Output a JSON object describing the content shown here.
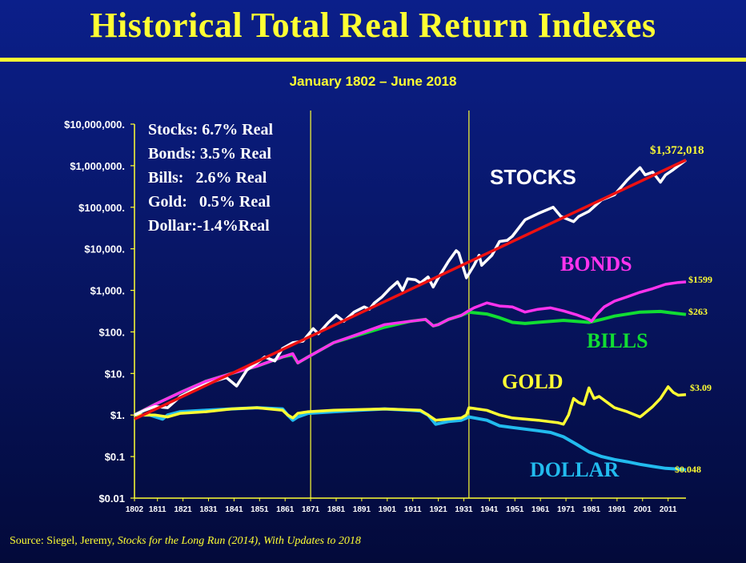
{
  "header": {
    "title": "Historical Total Real Return Indexes",
    "subtitle": "January 1802 – June 2018"
  },
  "source": {
    "prefix": "Source: Siegel, Jeremy, ",
    "italic": "Stocks for the Long Run (2014), With Updates to 2018"
  },
  "colors": {
    "stocks": "#ffffff",
    "trend": "#ee1111",
    "bonds": "#ff33ee",
    "bills": "#11dd33",
    "gold": "#ffff33",
    "dollar": "#22bbee",
    "axis": "#ffff33",
    "text": "#ffffff"
  },
  "chart_data": {
    "type": "line",
    "y_scale": "log",
    "ylim": [
      0.01,
      10000000
    ],
    "xlim": [
      1802,
      2018
    ],
    "y_ticks": [
      {
        "value": 10000000,
        "label": "$10,000,000."
      },
      {
        "value": 1000000,
        "label": "$1,000,000."
      },
      {
        "value": 100000,
        "label": "$100,000."
      },
      {
        "value": 10000,
        "label": "$10,000."
      },
      {
        "value": 1000,
        "label": "$1,000."
      },
      {
        "value": 100,
        "label": "$100."
      },
      {
        "value": 10,
        "label": "$10."
      },
      {
        "value": 1,
        "label": "$1."
      },
      {
        "value": 0.1,
        "label": "$0.1"
      },
      {
        "value": 0.01,
        "label": "$0.01"
      }
    ],
    "x_ticks": [
      1802,
      1811,
      1821,
      1831,
      1841,
      1851,
      1861,
      1871,
      1881,
      1891,
      1901,
      1911,
      1921,
      1931,
      1941,
      1951,
      1961,
      1971,
      1981,
      1991,
      2001,
      2011
    ],
    "vertical_markers": [
      1871,
      1933
    ],
    "legend": [
      "Stocks: 6.7% Real",
      "Bonds: 3.5% Real",
      "Bills:   2.6% Real",
      "Gold:   0.5% Real",
      "Dollar:-1.4%Real"
    ],
    "trend_line": {
      "x": [
        1802,
        2018
      ],
      "y": [
        0.8,
        1372018
      ]
    },
    "series": [
      {
        "key": "stocks",
        "name": "STOCKS",
        "end_label": "$1,372,018",
        "x": [
          1802,
          1806,
          1810,
          1815,
          1820,
          1825,
          1830,
          1835,
          1838,
          1842,
          1846,
          1850,
          1853,
          1857,
          1860,
          1864,
          1868,
          1872,
          1874,
          1878,
          1881,
          1884,
          1888,
          1892,
          1894,
          1896,
          1899,
          1902,
          1905,
          1907,
          1909,
          1912,
          1914,
          1917,
          1919,
          1921,
          1925,
          1928,
          1929,
          1932,
          1935,
          1937,
          1938,
          1942,
          1945,
          1948,
          1950,
          1955,
          1960,
          1966,
          1969,
          1974,
          1976,
          1980,
          1985,
          1990,
          1995,
          2000,
          2002,
          2005,
          2008,
          2010,
          2013,
          2018
        ],
        "y": [
          1,
          1.3,
          1.6,
          1.5,
          2.8,
          4,
          5.5,
          7,
          8,
          5,
          12,
          18,
          25,
          20,
          40,
          55,
          60,
          120,
          90,
          170,
          250,
          180,
          300,
          400,
          350,
          500,
          700,
          1100,
          1600,
          1000,
          1900,
          1800,
          1500,
          2100,
          1200,
          2000,
          5000,
          9000,
          8000,
          2000,
          4000,
          7000,
          4000,
          7000,
          15000,
          16000,
          20000,
          50000,
          70000,
          100000,
          60000,
          45000,
          60000,
          80000,
          150000,
          200000,
          450000,
          900000,
          600000,
          700000,
          400000,
          600000,
          800000,
          1372018
        ]
      },
      {
        "key": "bonds",
        "name": "BONDS",
        "end_label": "$1599",
        "x": [
          1802,
          1810,
          1820,
          1830,
          1840,
          1850,
          1860,
          1864,
          1866,
          1870,
          1880,
          1890,
          1900,
          1910,
          1916,
          1919,
          1921,
          1925,
          1930,
          1932,
          1935,
          1940,
          1945,
          1950,
          1955,
          1960,
          1965,
          1970,
          1975,
          1980,
          1981,
          1983,
          1986,
          1990,
          1995,
          2000,
          2005,
          2010,
          2015,
          2018
        ],
        "y": [
          1,
          1.8,
          3.5,
          6.5,
          10,
          15,
          25,
          30,
          18,
          25,
          55,
          90,
          150,
          180,
          200,
          140,
          150,
          200,
          250,
          300,
          380,
          500,
          420,
          400,
          300,
          350,
          380,
          320,
          260,
          200,
          180,
          260,
          400,
          550,
          700,
          900,
          1100,
          1400,
          1550,
          1599
        ]
      },
      {
        "key": "bills",
        "name": "BILLS",
        "end_label": "$263",
        "x": [
          1802,
          1810,
          1820,
          1830,
          1840,
          1850,
          1860,
          1864,
          1866,
          1870,
          1880,
          1890,
          1900,
          1910,
          1916,
          1919,
          1921,
          1925,
          1930,
          1933,
          1940,
          1945,
          1950,
          1955,
          1960,
          1970,
          1975,
          1980,
          1985,
          1990,
          2000,
          2008,
          2012,
          2018
        ],
        "y": [
          1,
          1.8,
          3.5,
          6.5,
          10,
          15,
          25,
          28,
          18,
          25,
          55,
          85,
          130,
          180,
          200,
          140,
          150,
          200,
          250,
          300,
          270,
          220,
          170,
          160,
          170,
          190,
          180,
          170,
          200,
          240,
          300,
          310,
          290,
          263
        ]
      },
      {
        "key": "gold",
        "name": "GOLD",
        "end_label": "$3.09",
        "x": [
          1802,
          1810,
          1815,
          1820,
          1830,
          1840,
          1850,
          1860,
          1862,
          1864,
          1866,
          1870,
          1880,
          1900,
          1914,
          1917,
          1920,
          1925,
          1930,
          1932,
          1933,
          1940,
          1945,
          1950,
          1960,
          1968,
          1970,
          1972,
          1974,
          1976,
          1978,
          1980,
          1982,
          1984,
          1990,
          1995,
          2000,
          2001,
          2005,
          2008,
          2011,
          2013,
          2015,
          2018
        ],
        "y": [
          1,
          1,
          0.9,
          1.1,
          1.2,
          1.4,
          1.5,
          1.3,
          1.0,
          0.85,
          1.1,
          1.2,
          1.3,
          1.4,
          1.3,
          1.0,
          0.75,
          0.8,
          0.85,
          1.0,
          1.5,
          1.3,
          1.0,
          0.85,
          0.75,
          0.65,
          0.6,
          1.0,
          2.5,
          2.0,
          1.8,
          4.5,
          2.5,
          2.8,
          1.5,
          1.2,
          0.9,
          1.0,
          1.6,
          2.5,
          4.8,
          3.5,
          3.0,
          3.09
        ]
      },
      {
        "key": "dollar",
        "name": "DOLLAR",
        "end_label": "$0.048",
        "x": [
          1802,
          1808,
          1813,
          1815,
          1820,
          1830,
          1840,
          1850,
          1860,
          1862,
          1864,
          1866,
          1870,
          1880,
          1890,
          1900,
          1910,
          1914,
          1917,
          1920,
          1925,
          1930,
          1933,
          1940,
          1945,
          1950,
          1960,
          1965,
          1970,
          1975,
          1980,
          1985,
          1990,
          1995,
          2000,
          2005,
          2010,
          2015,
          2018
        ],
        "y": [
          1,
          1,
          0.8,
          1.0,
          1.2,
          1.3,
          1.4,
          1.5,
          1.4,
          1.0,
          0.75,
          0.9,
          1.1,
          1.2,
          1.3,
          1.4,
          1.3,
          1.25,
          1.0,
          0.6,
          0.7,
          0.75,
          0.9,
          0.75,
          0.55,
          0.5,
          0.42,
          0.38,
          0.3,
          0.2,
          0.13,
          0.1,
          0.085,
          0.075,
          0.065,
          0.058,
          0.052,
          0.05,
          0.048
        ]
      }
    ]
  }
}
